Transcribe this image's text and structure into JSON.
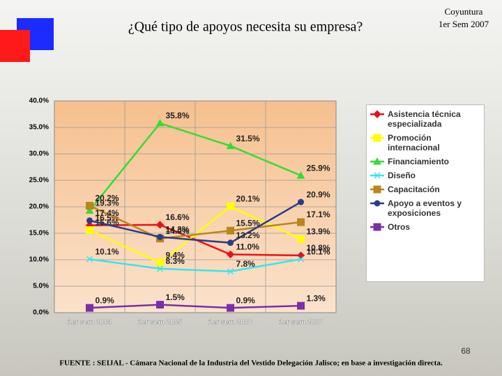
{
  "chart_data": {
    "type": "line",
    "title": "¿Qué tipo de apoyos necesita su empresa?",
    "corner_label": [
      "Coyuntura",
      "1er Sem 2007"
    ],
    "page_number": "68",
    "source": "FUENTE : SEIJAL - Cámara Nacional de la Industria del Vestido Delegación Jalisco; en base a investigación directa.",
    "categories": [
      "1er sem 2004",
      "1er sem 2005",
      "1er sem 2006",
      "1er sem 2007"
    ],
    "ylim": [
      0,
      40
    ],
    "yticks": [
      {
        "value": 0,
        "label": "0.0%"
      },
      {
        "value": 5,
        "label": "5.0%"
      },
      {
        "value": 10,
        "label": "10.0%"
      },
      {
        "value": 15,
        "label": "15.0%"
      },
      {
        "value": 20,
        "label": "20.0%"
      },
      {
        "value": 25,
        "label": "25.0%"
      },
      {
        "value": 30,
        "label": "30.0%"
      },
      {
        "value": 35,
        "label": "35.0%"
      },
      {
        "value": 40,
        "label": "40.0%"
      }
    ],
    "grid": true,
    "legend": "right",
    "series": [
      {
        "name": "Asistencia técnica especializada",
        "color": "#e8121a",
        "marker": "diamond",
        "values": [
          16.5,
          16.6,
          11.0,
          10.8
        ],
        "value_labels": [
          "16.5%",
          "16.6%",
          "11.0%",
          "10.8%"
        ]
      },
      {
        "name": "Promoción internacional",
        "color": "#ffff00",
        "marker": "square",
        "values": [
          15.6,
          9.4,
          20.1,
          13.9
        ],
        "value_labels": [
          "15.6%",
          "9.4%",
          "20.1%",
          "13.9%"
        ]
      },
      {
        "name": "Financiamiento",
        "color": "#33dd33",
        "marker": "triangle",
        "values": [
          19.3,
          35.8,
          31.5,
          25.9
        ],
        "value_labels": [
          "19.3%",
          "35.8%",
          "31.5%",
          "25.9%"
        ]
      },
      {
        "name": "Diseño",
        "color": "#33e6f0",
        "marker": "x",
        "values": [
          10.1,
          8.3,
          7.8,
          10.1
        ],
        "value_labels": [
          "10.1%",
          "8.3%",
          "7.8%",
          "10.1%"
        ]
      },
      {
        "name": "Capacitación",
        "color": "#b8861b",
        "marker": "square",
        "values": [
          20.2,
          14.0,
          15.5,
          17.1
        ],
        "value_labels": [
          "20.2%",
          "14.0%",
          "15.5%",
          "17.1%"
        ]
      },
      {
        "name": "Apoyo a eventos y exposiciones",
        "color": "#283c8c",
        "marker": "circle",
        "values": [
          17.4,
          14.3,
          13.2,
          20.9
        ],
        "value_labels": [
          "17.4%",
          "14.3%",
          "13.2%",
          "20.9%"
        ]
      },
      {
        "name": "Otros",
        "color": "#7a2fa8",
        "marker": "square",
        "values": [
          0.9,
          1.5,
          0.9,
          1.3
        ],
        "value_labels": [
          "0.9%",
          "1.5%",
          "0.9%",
          "1.3%"
        ]
      }
    ]
  }
}
